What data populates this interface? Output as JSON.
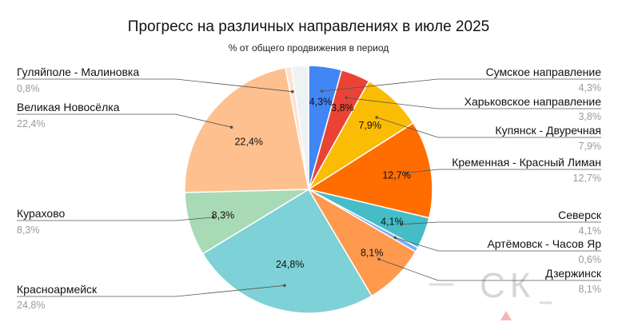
{
  "chart_data": {
    "type": "pie",
    "title": "Прогресс на различных направлениях в июле 2025",
    "subtitle": "% от общего продвижения в период",
    "slices": [
      {
        "label": "Сумское направление",
        "value": 4.3,
        "display": "4,3%",
        "color": "#4285f4"
      },
      {
        "label": "Харьковское направление",
        "value": 3.8,
        "display": "3,8%",
        "color": "#ea4335"
      },
      {
        "label": "Купянск - Двуречная",
        "value": 7.9,
        "display": "7,9%",
        "color": "#fbbc04"
      },
      {
        "label": "Кременная - Красный Лиман",
        "value": 12.7,
        "display": "12,7%",
        "color": "#ff6d01"
      },
      {
        "label": "Северск",
        "value": 4.1,
        "display": "4,1%",
        "color": "#46bdc6"
      },
      {
        "label": "Артёмовск - Часов Яр",
        "value": 0.6,
        "display": "0,6%",
        "color": "#7baaf7"
      },
      {
        "label": "Дзержинск",
        "value": 8.1,
        "display": "8,1%",
        "color": "#ff994d"
      },
      {
        "label": "Красноармейск",
        "value": 24.8,
        "display": "24,8%",
        "color": "#7ed1d7"
      },
      {
        "label": "Курахово",
        "value": 8.3,
        "display": "8,3%",
        "color": "#a8dab5"
      },
      {
        "label": "Великая Новосёлка",
        "value": 22.4,
        "display": "22,4%",
        "color": "#ffc08f"
      },
      {
        "label": "Гуляйполе - Малиновка",
        "value": 0.8,
        "display": "0,8%",
        "color": "#fde1d0"
      },
      {
        "label": "",
        "value": 2.2,
        "display": "",
        "color": "#eef2f2"
      }
    ]
  },
  "watermark": "СК"
}
